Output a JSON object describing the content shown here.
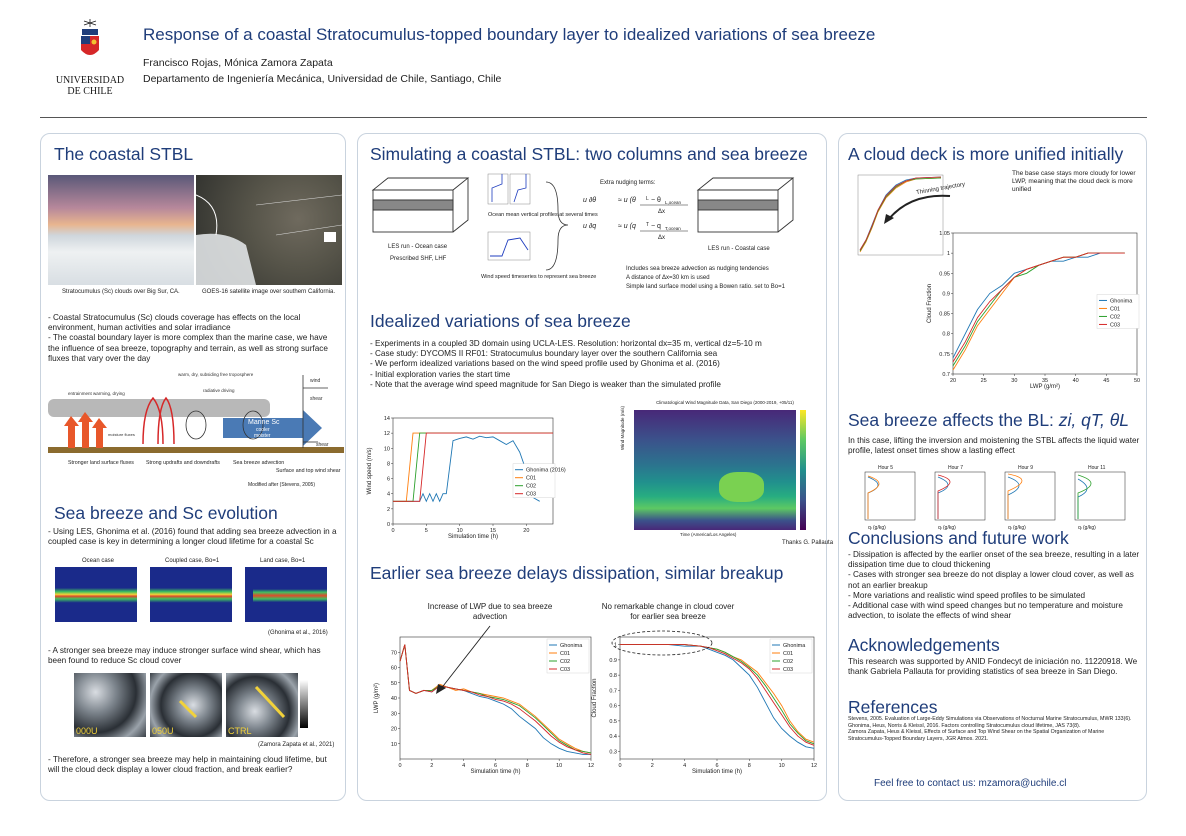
{
  "header": {
    "title": "Response of a coastal Stratocumulus-topped boundary layer to idealized variations of sea breeze",
    "authors": "Francisco Rojas, Mónica Zamora Zapata",
    "affiliation": "Departamento de Ingeniería Mecánica, Universidad de Chile, Santiago, Chile",
    "logo_line1": "UNIVERSIDAD",
    "logo_line2": "DE CHILE"
  },
  "col1": {
    "title1": "The coastal STBL",
    "cap_photo": "Stratocumulus (Sc) clouds over Big Sur, CA.",
    "cap_sat": "GOES-16 satellite image over southern California.",
    "text1": "- Coastal Stratocumulus (Sc) clouds coverage has effects on the local environment, human activities and solar irradiance\n- The coastal boundary layer is more complex than the marine case, we have the influence of sea breeze, topography and terrain, as well as strong surface fluxes that vary over the day",
    "schem": {
      "warm": "warm, dry, subsiding free troposphere",
      "entrain": "entrainment warming, drying",
      "radiative": "radiative driving",
      "wind": "wind",
      "shear": "shear",
      "moist": "moisture fluxes",
      "marine": "Marine Sc",
      "cooler": "cooler",
      "moister": "moister",
      "l1": "Stronger land surface fluxes",
      "l2": "Strong updrafts and downdrafts",
      "l3": "Sea breeze advection",
      "l4": "Surface and top wind shear",
      "mod": "Modified after (Stevens, 2005)"
    },
    "title2": "Sea breeze and Sc evolution",
    "text2": "- Using LES, Ghonima et al. (2016) found that adding sea breeze advection in a coupled case is key in determining a longer cloud lifetime for a coastal Sc",
    "case1": "Ocean case",
    "case2": "Coupled case, Bo=1",
    "case3": "Land case, Bo=1",
    "cite1": "(Ghonima et al., 2016)",
    "text3": "- A stronger sea breeze may induce stronger surface wind shear, which has been found to reduce Sc cloud cover",
    "img1": "000U",
    "img2": "050U",
    "img3": "CTRL",
    "cite2": "(Zamora Zapata et al., 2021)",
    "text4": "- Therefore, a stronger sea breeze may help in maintaining cloud lifetime, but will the cloud deck display a lower cloud fraction, and break earlier?"
  },
  "col2": {
    "title1": "Simulating a coastal STBL: two columns and sea breeze",
    "les_ocean": "LES run - Ocean case",
    "prescribed": "Prescribed SHF, LHF",
    "ocean_profiles": "Ocean mean vertical profiles at several times",
    "wind_ts": "Wind speed timeseries to represent sea breeze",
    "nudging": "Extra nudging terms:",
    "les_coastal": "LES run - Coastal case",
    "note1": "Includes sea breeze advection as nudging tendencies",
    "note2": "A distance of Δx=30 km is used",
    "note3": "Simple land surface model using a Bowen ratio. set to Bo=1",
    "title2": "Idealized variations of sea breeze",
    "list": [
      "- Experiments in a coupled 3D domain using UCLA-LES. Resolution: horizontal dx=35 m, vertical dz=5-10 m",
      "- Case study: DYCOMS II RF01: Stratocumulus boundary layer over the southern California sea",
      "- We perform idealized variations based on the wind speed profile used by Ghonima et al. (2016)",
      "- Initial exploration varies the start time",
      "- Note that the average wind speed magnitude for San Diego is weaker than the simulated profile"
    ],
    "contour_title": "Climatological Wind Magnitude Data, San Diego (2000-2019, +05/11)",
    "contour_ylabel": "Wind Magnitude (m/s)",
    "contour_xlabel": "Time (America/Los Angeles)",
    "thanks": "Thanks G. Pallauta",
    "title3": "Earlier sea breeze delays dissipation, similar breakup",
    "ann1": "Increase of LWP due to sea breeze advection",
    "ann2": "No remarkable change in cloud cover for earlier sea breeze"
  },
  "col3": {
    "title1": "A cloud deck is more unified initially",
    "ann_base": "The base case stays more cloudy for lower LWP, meaning that the cloud deck is more unified",
    "thinning": "Thinning trajectory",
    "title2_prefix": "Sea breeze affects the BL: ",
    "title2_vars": "zi, qT, θL",
    "text2": "In this case, lifting the inversion and moistening the STBL affects the liquid water profile, latest onset times show a lasting effect",
    "hours": [
      "Hour 5",
      "Hour 7",
      "Hour 9",
      "Hour 11"
    ],
    "profile_xlabel": "qₗ (g/kg)",
    "title3": "Conclusions and future work",
    "text3": "- Dissipation is affected by the earlier onset of the sea breeze, resulting in a later dissipation time due to cloud thickening\n- Cases with stronger sea breeze do not display a lower cloud cover, as well as not an earlier breakup\n- More variations and realistic wind speed profiles to be simulated\n- Additional case with wind speed changes but no temperature and moisture advection, to isolate the effects of wind shear",
    "title4": "Acknowledgements",
    "text4": "This research was supported by ANID Fondecyt de iniciación no. 11220918. We thank Gabriela Pallauta for providing statistics of sea breeze in San Diego.",
    "title5": "References",
    "refs": [
      "Stevens, 2005. Evaluation of Large-Eddy Simulations via Observations of Nocturnal Marine Stratocumulus, MWR 133(6).",
      "Ghonima, Heus, Norris & Kleissl, 2016. Factors controlling Stratocumulus cloud lifetime, JAS 73(8).",
      "Zamora Zapata, Heus & Kleissl, Effects of Surface and Top Wind Shear on the Spatial Organization of Marine Stratocumulus-Topped Boundary Layers, JGR Atmos. 2021."
    ],
    "contact": "Feel free to contact us: mzamora@uchile.cl"
  },
  "chart_data": [
    {
      "type": "line",
      "xlabel": "Simulation time (h)",
      "ylabel": "Wind speed (m/s)",
      "xlim": [
        0,
        24
      ],
      "ylim": [
        0,
        14
      ],
      "xticks": [
        0,
        5,
        10,
        15,
        20
      ],
      "yticks": [
        0,
        2,
        4,
        6,
        8,
        10,
        12,
        14
      ],
      "series": [
        {
          "name": "Ghonima (2016)",
          "color": "#1f77b4",
          "x": [
            0,
            4,
            4.5,
            5,
            5.5,
            6,
            6.5,
            7,
            7.5,
            8,
            9,
            10,
            11,
            12,
            13,
            14,
            15,
            16,
            17,
            18,
            19,
            20,
            21,
            22
          ],
          "y": [
            3,
            3,
            4,
            3,
            4,
            3,
            4,
            3,
            4,
            4,
            11,
            11.3,
            11.5,
            11.2,
            11.6,
            11.4,
            11.5,
            11.0,
            10.5,
            11.0,
            9.5,
            7,
            3.5,
            3
          ]
        },
        {
          "name": "C01",
          "color": "#ff7f0e",
          "x": [
            0,
            1,
            2,
            3,
            24
          ],
          "y": [
            3,
            3,
            3,
            12,
            12
          ]
        },
        {
          "name": "C02",
          "color": "#2ca02c",
          "x": [
            0,
            2,
            3,
            4,
            24
          ],
          "y": [
            3,
            3,
            3,
            12,
            12
          ]
        },
        {
          "name": "C03",
          "color": "#d62728",
          "x": [
            0,
            3,
            4,
            5,
            24
          ],
          "y": [
            3,
            3,
            3,
            12,
            12
          ]
        }
      ]
    },
    {
      "type": "line",
      "xlabel": "Simulation time (h)",
      "ylabel": "LWP (g/m²)",
      "xlim": [
        0,
        12
      ],
      "ylim": [
        0,
        80
      ],
      "xticks": [
        0,
        2,
        4,
        6,
        8,
        10,
        12
      ],
      "yticks": [
        10,
        20,
        30,
        40,
        50,
        60,
        70
      ],
      "series": [
        {
          "name": "Ghonima",
          "color": "#1f77b4",
          "x": [
            0,
            0.3,
            0.6,
            1,
            1.5,
            2,
            2.5,
            3,
            3.5,
            4,
            4.5,
            5,
            5.5,
            6,
            6.5,
            7,
            7.5,
            8,
            8.5,
            9,
            9.5,
            10,
            10.5,
            11,
            11.5,
            12
          ],
          "y": [
            64,
            75,
            45,
            43,
            45,
            44,
            48,
            47,
            46,
            45,
            43,
            41,
            40,
            38,
            36,
            33,
            28,
            24,
            20,
            14,
            10,
            7,
            5,
            4,
            3,
            3
          ]
        },
        {
          "name": "C01",
          "color": "#ff7f0e",
          "x": [
            0,
            0.3,
            0.6,
            1,
            1.5,
            2,
            2.5,
            3,
            3.5,
            4,
            4.5,
            5,
            5.5,
            6,
            6.5,
            7,
            7.5,
            8,
            8.5,
            9,
            9.5,
            10,
            10.5,
            11,
            11.5,
            12
          ],
          "y": [
            64,
            75,
            45,
            43,
            45,
            45,
            49,
            47,
            45,
            46,
            44,
            43,
            42,
            41,
            40,
            38,
            36,
            32,
            28,
            23,
            18,
            13,
            10,
            7,
            5,
            4
          ]
        },
        {
          "name": "C02",
          "color": "#2ca02c",
          "x": [
            0,
            0.3,
            0.6,
            1,
            1.5,
            2,
            2.5,
            3,
            3.5,
            4,
            4.5,
            5,
            5.5,
            6,
            6.5,
            7,
            7.5,
            8,
            8.5,
            9,
            9.5,
            10,
            10.5,
            11,
            11.5,
            12
          ],
          "y": [
            64,
            75,
            45,
            43,
            45,
            45,
            48,
            47,
            46,
            45,
            44,
            43,
            41,
            40,
            39,
            37,
            35,
            31,
            27,
            22,
            17,
            12,
            9,
            6,
            5,
            4
          ]
        },
        {
          "name": "C03",
          "color": "#d62728",
          "x": [
            0,
            0.3,
            0.6,
            1,
            1.5,
            2,
            2.5,
            3,
            3.5,
            4,
            4.5,
            5,
            5.5,
            6,
            6.5,
            7,
            7.5,
            8,
            8.5,
            9,
            9.5,
            10,
            10.5,
            11,
            11.5,
            12
          ],
          "y": [
            64,
            75,
            45,
            43,
            45,
            44,
            48,
            47,
            46,
            45,
            44,
            42,
            41,
            39,
            38,
            36,
            33,
            29,
            25,
            20,
            15,
            11,
            8,
            6,
            4,
            3
          ]
        }
      ]
    },
    {
      "type": "line",
      "xlabel": "Simulation time (h)",
      "ylabel": "Cloud Fraction",
      "xlim": [
        0,
        12
      ],
      "ylim": [
        0.25,
        1.05
      ],
      "xticks": [
        0,
        2,
        4,
        6,
        8,
        10,
        12
      ],
      "yticks": [
        0.3,
        0.4,
        0.5,
        0.6,
        0.7,
        0.8,
        0.9,
        1.0
      ],
      "series": [
        {
          "name": "Ghonima",
          "color": "#1f77b4",
          "x": [
            0,
            1,
            2,
            3,
            4,
            5,
            5.5,
            6,
            6.5,
            7,
            7.5,
            8,
            8.5,
            9,
            9.5,
            10,
            10.5,
            11,
            11.5,
            12
          ],
          "y": [
            1.0,
            1.0,
            1.0,
            1.0,
            0.99,
            0.99,
            0.97,
            0.95,
            0.93,
            0.9,
            0.85,
            0.8,
            0.72,
            0.62,
            0.52,
            0.45,
            0.4,
            0.36,
            0.33,
            0.32
          ]
        },
        {
          "name": "C01",
          "color": "#ff7f0e",
          "x": [
            0,
            1,
            2,
            3,
            4,
            5,
            5.5,
            6,
            6.5,
            7,
            7.5,
            8,
            8.5,
            9,
            9.5,
            10,
            10.5,
            11,
            11.5,
            12
          ],
          "y": [
            1.0,
            1.0,
            1.0,
            1.0,
            1.0,
            0.99,
            0.98,
            0.97,
            0.95,
            0.92,
            0.9,
            0.86,
            0.82,
            0.75,
            0.68,
            0.6,
            0.5,
            0.43,
            0.38,
            0.36
          ]
        },
        {
          "name": "C02",
          "color": "#2ca02c",
          "x": [
            0,
            1,
            2,
            3,
            4,
            5,
            5.5,
            6,
            6.5,
            7,
            7.5,
            8,
            8.5,
            9,
            9.5,
            10,
            10.5,
            11,
            11.5,
            12
          ],
          "y": [
            1.0,
            1.0,
            1.0,
            1.0,
            1.0,
            0.99,
            0.98,
            0.97,
            0.95,
            0.92,
            0.89,
            0.85,
            0.8,
            0.73,
            0.65,
            0.57,
            0.48,
            0.42,
            0.37,
            0.35
          ]
        },
        {
          "name": "C03",
          "color": "#d62728",
          "x": [
            0,
            1,
            2,
            3,
            4,
            5,
            5.5,
            6,
            6.5,
            7,
            7.5,
            8,
            8.5,
            9,
            9.5,
            10,
            10.5,
            11,
            11.5,
            12
          ],
          "y": [
            1.0,
            1.0,
            1.0,
            1.0,
            1.0,
            0.99,
            0.98,
            0.96,
            0.94,
            0.91,
            0.88,
            0.84,
            0.78,
            0.7,
            0.62,
            0.54,
            0.46,
            0.4,
            0.36,
            0.34
          ]
        }
      ]
    },
    {
      "type": "line",
      "xlabel": "LWP (g/m²)",
      "ylabel": "Cloud Fraction",
      "xlim": [
        20,
        50
      ],
      "ylim": [
        0.7,
        1.05
      ],
      "xticks": [
        20,
        25,
        30,
        35,
        40,
        45,
        50
      ],
      "yticks": [
        0.7,
        0.75,
        0.8,
        0.85,
        0.9,
        0.95,
        1.0,
        1.05
      ],
      "series": [
        {
          "name": "Ghonima",
          "color": "#1f77b4",
          "x": [
            20,
            22,
            24,
            26,
            28,
            30,
            32,
            34,
            36,
            38,
            40,
            42,
            44,
            46,
            48
          ],
          "y": [
            0.74,
            0.8,
            0.86,
            0.9,
            0.92,
            0.95,
            0.96,
            0.97,
            0.98,
            0.98,
            0.99,
            0.99,
            1.0,
            1.0,
            1.0
          ]
        },
        {
          "name": "C01",
          "color": "#ff7f0e",
          "x": [
            20,
            22,
            24,
            26,
            28,
            30,
            32,
            34,
            36,
            38,
            40,
            42,
            44,
            46,
            48
          ],
          "y": [
            0.71,
            0.76,
            0.82,
            0.86,
            0.9,
            0.94,
            0.96,
            0.97,
            0.98,
            0.99,
            0.99,
            1.0,
            1.0,
            1.0,
            1.0
          ]
        },
        {
          "name": "C02",
          "color": "#2ca02c",
          "x": [
            20,
            22,
            24,
            26,
            28,
            30,
            32,
            34,
            36,
            38,
            40,
            42,
            44,
            46,
            48
          ],
          "y": [
            0.72,
            0.77,
            0.83,
            0.87,
            0.91,
            0.94,
            0.95,
            0.97,
            0.98,
            0.99,
            0.99,
            1.0,
            1.0,
            1.0,
            1.0
          ]
        },
        {
          "name": "C03",
          "color": "#d62728",
          "x": [
            20,
            22,
            24,
            26,
            28,
            30,
            32,
            34,
            36,
            38,
            40,
            42,
            44,
            46,
            48
          ],
          "y": [
            0.73,
            0.78,
            0.84,
            0.88,
            0.91,
            0.94,
            0.96,
            0.97,
            0.98,
            0.99,
            0.99,
            1.0,
            1.0,
            1.0,
            1.0
          ]
        }
      ]
    }
  ]
}
